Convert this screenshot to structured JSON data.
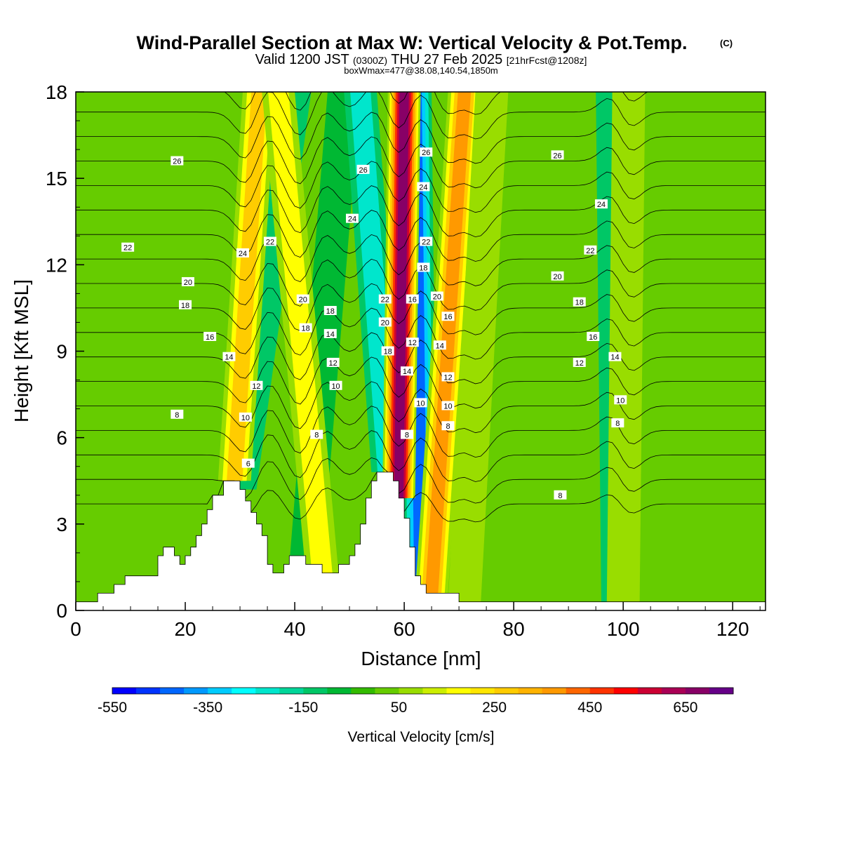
{
  "title": {
    "main": "Wind-Parallel Section at Max W: Vertical Velocity & Pot.Temp.",
    "copyright": "(C)",
    "valid_prefix": "Valid 1200 JST",
    "valid_utc": "(0300Z)",
    "valid_date": "THU 27 Feb 2025",
    "forecast": "[21hrFcst@1208z]",
    "box_info": "boxWmax=477@38.08,140.54,1850m"
  },
  "colors": {
    "terrain": "#ffffff",
    "contour": "#000000",
    "background": "#66cc00"
  },
  "chart_data": {
    "type": "heatmap",
    "xlabel": "Distance [nm]",
    "ylabel": "Height [Kft MSL]",
    "xlim": [
      0,
      126
    ],
    "ylim": [
      0,
      18
    ],
    "x_ticks": [
      0,
      20,
      40,
      60,
      80,
      100,
      120
    ],
    "y_ticks": [
      0,
      3,
      6,
      9,
      12,
      15,
      18
    ],
    "colorbar": {
      "label": "Vertical Velocity [cm/s]",
      "tick_labels": [
        "-550",
        "-350",
        "-150",
        "50",
        "250",
        "450",
        "650"
      ],
      "tick_values": [
        -550,
        -350,
        -150,
        50,
        250,
        450,
        650
      ],
      "range": [
        -550,
        750
      ],
      "step": 50,
      "colors": [
        "#0000ff",
        "#0033ff",
        "#0066ff",
        "#0099ff",
        "#00ccff",
        "#00ffff",
        "#00e6cc",
        "#00d699",
        "#00c766",
        "#00b833",
        "#33bb00",
        "#66cc00",
        "#99dd00",
        "#ccee00",
        "#ffff00",
        "#ffe600",
        "#ffcc00",
        "#ffb300",
        "#ff9900",
        "#ff6600",
        "#ff3300",
        "#ff0000",
        "#cc0033",
        "#aa0055",
        "#880066",
        "#660088"
      ]
    },
    "terrain_profile": [
      [
        0,
        0.3
      ],
      [
        4,
        0.3
      ],
      [
        4,
        0.6
      ],
      [
        7,
        0.6
      ],
      [
        7,
        0.9
      ],
      [
        9,
        0.9
      ],
      [
        9,
        1.2
      ],
      [
        15,
        1.2
      ],
      [
        15,
        1.9
      ],
      [
        16,
        1.9
      ],
      [
        16,
        2.2
      ],
      [
        18,
        2.2
      ],
      [
        18,
        1.9
      ],
      [
        19,
        1.9
      ],
      [
        19,
        1.6
      ],
      [
        20,
        1.6
      ],
      [
        20,
        1.9
      ],
      [
        21,
        1.9
      ],
      [
        21,
        2.2
      ],
      [
        22,
        2.2
      ],
      [
        22,
        2.6
      ],
      [
        23,
        2.6
      ],
      [
        23,
        3.0
      ],
      [
        24,
        3.0
      ],
      [
        24,
        3.5
      ],
      [
        25,
        3.5
      ],
      [
        25,
        4.0
      ],
      [
        27,
        4.0
      ],
      [
        27,
        4.5
      ],
      [
        30,
        4.5
      ],
      [
        30,
        4.2
      ],
      [
        31,
        4.2
      ],
      [
        31,
        3.8
      ],
      [
        32,
        3.8
      ],
      [
        32,
        3.4
      ],
      [
        33,
        3.4
      ],
      [
        33,
        3.0
      ],
      [
        34,
        3.0
      ],
      [
        34,
        2.6
      ],
      [
        35,
        2.6
      ],
      [
        35,
        1.6
      ],
      [
        36,
        1.6
      ],
      [
        36,
        1.3
      ],
      [
        38,
        1.3
      ],
      [
        38,
        1.6
      ],
      [
        39,
        1.6
      ],
      [
        39,
        1.9
      ],
      [
        42,
        1.9
      ],
      [
        42,
        1.6
      ],
      [
        45,
        1.6
      ],
      [
        45,
        1.3
      ],
      [
        48,
        1.3
      ],
      [
        48,
        1.6
      ],
      [
        50,
        1.6
      ],
      [
        50,
        1.9
      ],
      [
        51,
        1.9
      ],
      [
        51,
        2.3
      ],
      [
        52,
        2.3
      ],
      [
        52,
        3.0
      ],
      [
        53,
        3.0
      ],
      [
        53,
        3.9
      ],
      [
        54,
        3.9
      ],
      [
        54,
        4.5
      ],
      [
        55,
        4.5
      ],
      [
        55,
        4.8
      ],
      [
        58,
        4.8
      ],
      [
        58,
        4.5
      ],
      [
        59,
        4.5
      ],
      [
        59,
        3.9
      ],
      [
        60,
        3.9
      ],
      [
        60,
        3.2
      ],
      [
        61,
        3.2
      ],
      [
        61,
        2.2
      ],
      [
        62,
        2.2
      ],
      [
        62,
        1.2
      ],
      [
        63,
        1.2
      ],
      [
        63,
        0.9
      ],
      [
        64,
        0.9
      ],
      [
        64,
        0.6
      ],
      [
        70,
        0.6
      ],
      [
        70,
        0.3
      ],
      [
        126,
        0.3
      ]
    ],
    "updraft_bands": [
      {
        "x_base": 29,
        "x_top": 33.5,
        "w_cm_s": 250
      },
      {
        "x_base": 45,
        "x_top": 37,
        "w_cm_s": 150
      },
      {
        "x_base": 59,
        "x_top": 60,
        "w_cm_s": 650
      },
      {
        "x_base": 65,
        "x_top": 71,
        "w_cm_s": 350
      },
      {
        "x_base": 71,
        "x_top": 76,
        "w_cm_s": 100
      },
      {
        "x_base": 100,
        "x_top": 101,
        "w_cm_s": 100
      }
    ],
    "downdraft_bands": [
      {
        "x_base": 30,
        "x_top": 40,
        "w_cm_s": -150
      },
      {
        "x_base": 42,
        "x_top": 49,
        "w_cm_s": -100
      },
      {
        "x_base": 57,
        "x_top": 52,
        "w_cm_s": -250
      },
      {
        "x_base": 63,
        "x_top": 62,
        "w_cm_s": -500
      },
      {
        "x_base": 99,
        "x_top": 98,
        "w_cm_s": -150
      }
    ],
    "isentropes": {
      "label_values": [
        "6",
        "8",
        "10",
        "12",
        "14",
        "16",
        "18",
        "20",
        "22",
        "24",
        "26"
      ],
      "labels": [
        {
          "text": "26",
          "x": 18.5,
          "y": 15.6
        },
        {
          "text": "22",
          "x": 9.5,
          "y": 12.6
        },
        {
          "text": "20",
          "x": 20.5,
          "y": 11.4
        },
        {
          "text": "18",
          "x": 20,
          "y": 10.6
        },
        {
          "text": "16",
          "x": 24.5,
          "y": 9.5
        },
        {
          "text": "14",
          "x": 28,
          "y": 8.8
        },
        {
          "text": "12",
          "x": 33,
          "y": 7.8
        },
        {
          "text": "10",
          "x": 31,
          "y": 6.7
        },
        {
          "text": "8",
          "x": 18.5,
          "y": 6.8
        },
        {
          "text": "6",
          "x": 31.5,
          "y": 5.1
        },
        {
          "text": "24",
          "x": 30.5,
          "y": 12.4
        },
        {
          "text": "22",
          "x": 35.5,
          "y": 12.8
        },
        {
          "text": "20",
          "x": 41.5,
          "y": 10.8
        },
        {
          "text": "18",
          "x": 46.5,
          "y": 10.4
        },
        {
          "text": "18",
          "x": 42,
          "y": 9.8
        },
        {
          "text": "14",
          "x": 46.5,
          "y": 9.6
        },
        {
          "text": "12",
          "x": 47,
          "y": 8.6
        },
        {
          "text": "10",
          "x": 47.5,
          "y": 7.8
        },
        {
          "text": "8",
          "x": 44,
          "y": 6.1
        },
        {
          "text": "26",
          "x": 52.5,
          "y": 15.3
        },
        {
          "text": "24",
          "x": 50.5,
          "y": 13.6
        },
        {
          "text": "22",
          "x": 56.5,
          "y": 10.8
        },
        {
          "text": "20",
          "x": 56.5,
          "y": 10.0
        },
        {
          "text": "18",
          "x": 57,
          "y": 9.0
        },
        {
          "text": "16",
          "x": 61.5,
          "y": 10.8
        },
        {
          "text": "12",
          "x": 61.5,
          "y": 9.3
        },
        {
          "text": "14",
          "x": 60.5,
          "y": 8.3
        },
        {
          "text": "8",
          "x": 60.5,
          "y": 6.1
        },
        {
          "text": "10",
          "x": 63,
          "y": 7.2
        },
        {
          "text": "26",
          "x": 64,
          "y": 15.9
        },
        {
          "text": "24",
          "x": 63.5,
          "y": 14.7
        },
        {
          "text": "22",
          "x": 64,
          "y": 12.8
        },
        {
          "text": "18",
          "x": 63.5,
          "y": 11.9
        },
        {
          "text": "20",
          "x": 66,
          "y": 10.9
        },
        {
          "text": "16",
          "x": 68,
          "y": 10.2
        },
        {
          "text": "14",
          "x": 66.5,
          "y": 9.2
        },
        {
          "text": "12",
          "x": 68,
          "y": 8.1
        },
        {
          "text": "10",
          "x": 68,
          "y": 7.1
        },
        {
          "text": "8",
          "x": 68,
          "y": 6.4
        },
        {
          "text": "26",
          "x": 88,
          "y": 15.8
        },
        {
          "text": "24",
          "x": 96,
          "y": 14.1
        },
        {
          "text": "22",
          "x": 94,
          "y": 12.5
        },
        {
          "text": "20",
          "x": 88,
          "y": 11.6
        },
        {
          "text": "18",
          "x": 92,
          "y": 10.7
        },
        {
          "text": "16",
          "x": 94.5,
          "y": 9.5
        },
        {
          "text": "14",
          "x": 98.5,
          "y": 8.8
        },
        {
          "text": "12",
          "x": 92,
          "y": 8.6
        },
        {
          "text": "10",
          "x": 99.5,
          "y": 7.3
        },
        {
          "text": "8",
          "x": 99,
          "y": 6.5
        },
        {
          "text": "8",
          "x": 88.5,
          "y": 4.0
        }
      ]
    }
  }
}
